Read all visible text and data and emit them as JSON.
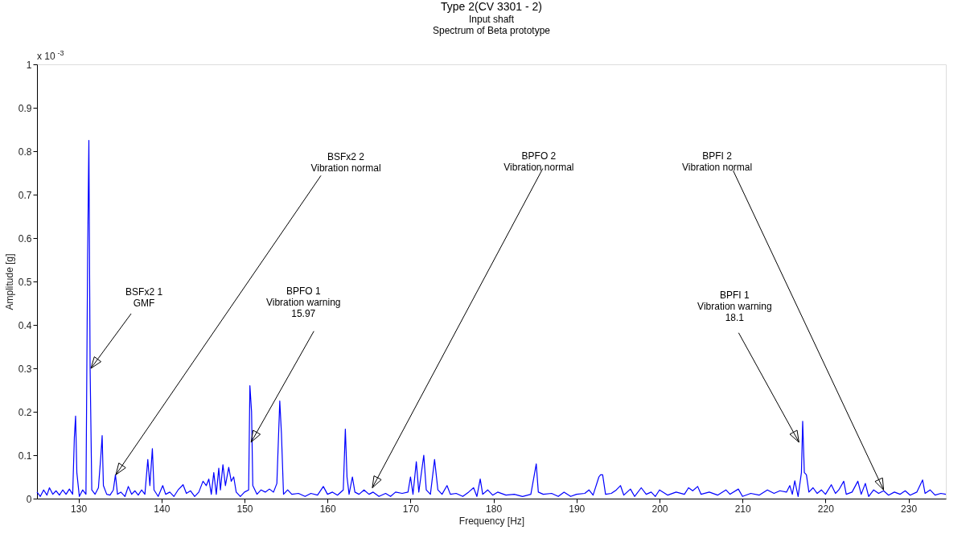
{
  "chart_data": {
    "type": "line",
    "title": "Type 2(CV 3301 - 2)",
    "subtitle": "Input shaft\nSpectrum of Beta prototype",
    "xlabel": "Frequency [Hz]",
    "ylabel": "Amplitude [g]",
    "xlim": [
      125,
      234.5
    ],
    "ylim": [
      0,
      1
    ],
    "xticks": [
      130,
      140,
      150,
      160,
      170,
      180,
      190,
      200,
      210,
      220,
      230
    ],
    "yticks": [
      0,
      0.1,
      0.2,
      0.3,
      0.4,
      0.5,
      0.6,
      0.7,
      0.8,
      0.9,
      1
    ],
    "grid": false,
    "marker": "none",
    "line_style": "solid",
    "series": [
      {
        "color": "#0000ff",
        "x": [
          125.0,
          125.4,
          125.8,
          126.2,
          126.5,
          126.9,
          127.3,
          127.7,
          128.1,
          128.5,
          128.9,
          129.3,
          129.5,
          129.65,
          129.8,
          130.1,
          130.5,
          130.9,
          131.1,
          131.25,
          131.4,
          131.6,
          132.0,
          132.4,
          132.7,
          132.85,
          133.0,
          133.4,
          133.8,
          134.2,
          134.45,
          134.7,
          135.1,
          135.6,
          136.0,
          136.4,
          136.8,
          137.2,
          137.6,
          138.0,
          138.35,
          138.6,
          138.9,
          139.1,
          139.6,
          140.15,
          140.5,
          141.0,
          141.5,
          142.0,
          142.6,
          143.0,
          143.5,
          144.0,
          144.5,
          145.0,
          145.4,
          145.7,
          146.0,
          146.3,
          146.6,
          146.9,
          147.1,
          147.4,
          147.7,
          148.1,
          148.4,
          148.7,
          149.0,
          149.5,
          150.0,
          150.5,
          150.65,
          150.85,
          151.0,
          151.5,
          152.0,
          152.5,
          153.0,
          153.5,
          153.9,
          154.25,
          154.45,
          154.7,
          155.2,
          155.7,
          156.5,
          157.3,
          158.0,
          158.8,
          159.5,
          160.0,
          160.6,
          161.2,
          161.9,
          162.15,
          162.35,
          162.6,
          163.0,
          163.3,
          163.8,
          164.4,
          165.0,
          165.5,
          166.2,
          167.0,
          167.6,
          168.2,
          169.0,
          169.7,
          170.0,
          170.3,
          170.7,
          171.0,
          171.6,
          171.9,
          172.4,
          172.9,
          173.3,
          173.8,
          174.4,
          174.8,
          175.5,
          176.3,
          177.0,
          177.6,
          178.0,
          178.4,
          178.7,
          179.3,
          179.9,
          180.5,
          181.5,
          182.5,
          183.5,
          184.5,
          185.15,
          185.4,
          186.0,
          187.0,
          187.8,
          188.5,
          189.3,
          190.0,
          191.0,
          191.5,
          192.0,
          192.7,
          192.9,
          193.15,
          193.5,
          194.2,
          194.8,
          195.3,
          195.7,
          196.5,
          197.0,
          197.8,
          198.4,
          199.0,
          199.5,
          200.0,
          201.0,
          202.0,
          203.0,
          203.5,
          204.0,
          204.6,
          205.0,
          206.0,
          207.0,
          208.0,
          208.5,
          209.5,
          210.0,
          211.0,
          212.0,
          213.0,
          213.8,
          214.5,
          215.3,
          215.7,
          216.0,
          216.3,
          216.7,
          217.1,
          217.25,
          217.45,
          217.7,
          218.0,
          218.5,
          219.0,
          219.5,
          220.0,
          220.7,
          221.2,
          221.6,
          222.2,
          222.5,
          223.2,
          223.9,
          224.3,
          224.8,
          225.2,
          225.8,
          226.4,
          227.0,
          227.6,
          228.3,
          229.0,
          229.6,
          230.2,
          231.0,
          231.7,
          232.0,
          232.6,
          233.2,
          233.9,
          234.5
        ],
        "values": [
          0.015,
          0.005,
          0.02,
          0.008,
          0.025,
          0.01,
          0.018,
          0.008,
          0.02,
          0.01,
          0.022,
          0.01,
          0.14,
          0.19,
          0.06,
          0.005,
          0.02,
          0.01,
          0.56,
          0.825,
          0.3,
          0.02,
          0.01,
          0.025,
          0.1,
          0.145,
          0.03,
          0.01,
          0.008,
          0.02,
          0.055,
          0.01,
          0.015,
          0.005,
          0.028,
          0.01,
          0.018,
          0.008,
          0.02,
          0.01,
          0.09,
          0.03,
          0.115,
          0.02,
          0.005,
          0.03,
          0.01,
          0.015,
          0.005,
          0.02,
          0.032,
          0.012,
          0.018,
          0.005,
          0.015,
          0.04,
          0.03,
          0.045,
          0.01,
          0.06,
          0.01,
          0.07,
          0.02,
          0.078,
          0.03,
          0.072,
          0.04,
          0.05,
          0.015,
          0.005,
          0.015,
          0.02,
          0.26,
          0.2,
          0.03,
          0.01,
          0.02,
          0.015,
          0.022,
          0.015,
          0.035,
          0.225,
          0.15,
          0.01,
          0.02,
          0.01,
          0.012,
          0.005,
          0.012,
          0.008,
          0.028,
          0.01,
          0.015,
          0.008,
          0.02,
          0.16,
          0.05,
          0.01,
          0.05,
          0.015,
          0.01,
          0.02,
          0.01,
          0.015,
          0.005,
          0.012,
          0.005,
          0.015,
          0.012,
          0.015,
          0.05,
          0.01,
          0.085,
          0.015,
          0.1,
          0.02,
          0.01,
          0.09,
          0.02,
          0.01,
          0.03,
          0.01,
          0.012,
          0.005,
          0.015,
          0.025,
          0.005,
          0.045,
          0.01,
          0.02,
          0.008,
          0.015,
          0.008,
          0.01,
          0.005,
          0.01,
          0.08,
          0.015,
          0.01,
          0.012,
          0.005,
          0.015,
          0.005,
          0.01,
          0.012,
          0.02,
          0.008,
          0.05,
          0.055,
          0.055,
          0.01,
          0.012,
          0.02,
          0.03,
          0.008,
          0.022,
          0.005,
          0.025,
          0.01,
          0.015,
          0.005,
          0.02,
          0.008,
          0.015,
          0.01,
          0.025,
          0.018,
          0.028,
          0.01,
          0.015,
          0.008,
          0.02,
          0.01,
          0.022,
          0.005,
          0.012,
          0.008,
          0.02,
          0.012,
          0.018,
          0.015,
          0.03,
          0.01,
          0.041,
          0.005,
          0.06,
          0.178,
          0.06,
          0.055,
          0.015,
          0.025,
          0.012,
          0.02,
          0.01,
          0.032,
          0.012,
          0.02,
          0.04,
          0.01,
          0.015,
          0.04,
          0.01,
          0.035,
          0.005,
          0.02,
          0.012,
          0.018,
          0.008,
          0.015,
          0.01,
          0.018,
          0.008,
          0.015,
          0.043,
          0.012,
          0.02,
          0.008,
          0.012,
          0.01
        ]
      }
    ],
    "annotations": [
      {
        "text": "BSFx2 1\nGMF",
        "x": 131.5,
        "y": 0.3
      },
      {
        "text": "BSFx2 2\nVibration normal",
        "x": 134.5,
        "y": 0.055
      },
      {
        "text": "BPFO 1\nVibration warning\n15.97",
        "x": 150.8,
        "y": 0.13
      },
      {
        "text": "BPFO 2\nVibration normal",
        "x": 165.4,
        "y": 0.025
      },
      {
        "text": "BPFI 2\nVibration normal",
        "x": 227.0,
        "y": 0.02
      },
      {
        "text": "BPFI 1\nVibration warning\n18.1",
        "x": 216.8,
        "y": 0.13
      },
      "x 10$^{-3}$"
    ]
  }
}
